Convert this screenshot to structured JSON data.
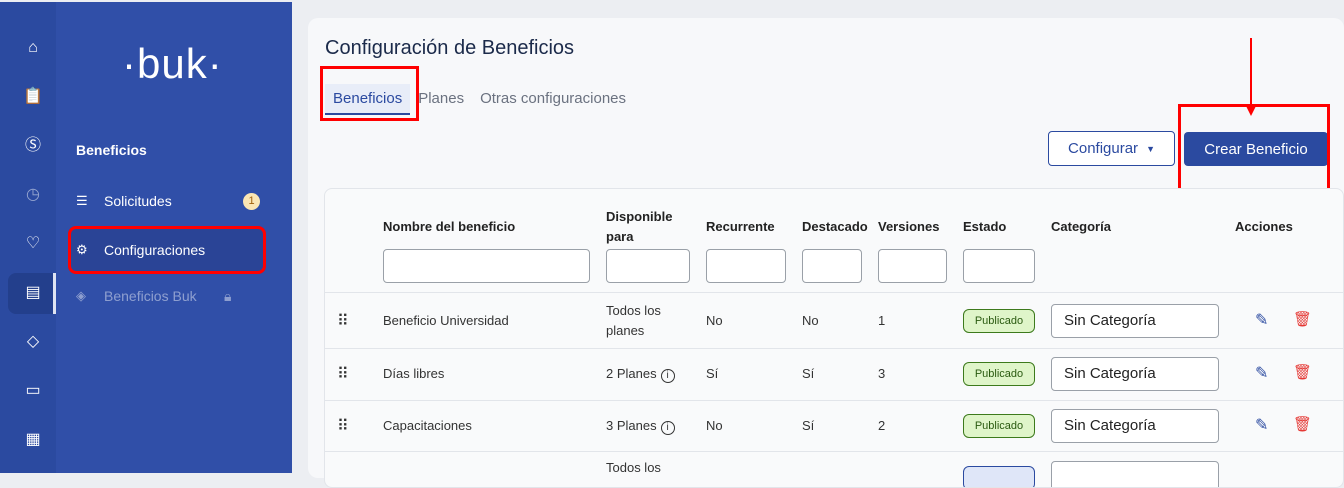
{
  "rail": {
    "icons": [
      "home-icon",
      "clipboard-clock-icon",
      "dollar-icon",
      "clock-icon",
      "hand-heart-icon",
      "gift-icon",
      "graduation-icon",
      "folder-icon",
      "store-icon"
    ]
  },
  "sidebar": {
    "logo": "·buk·",
    "section": "Beneficios",
    "items": [
      {
        "label": "Solicitudes",
        "badge": "1"
      },
      {
        "label": "Configuraciones"
      },
      {
        "label": "Beneficios Buk"
      }
    ]
  },
  "page": {
    "title": "Configuración de Beneficios",
    "tabs": [
      "Beneficios",
      "Planes",
      "Otras configuraciones"
    ],
    "configurar": "Configurar",
    "crear": "Crear Beneficio"
  },
  "table": {
    "headers": [
      "Nombre del beneficio",
      "Disponible para",
      "Recurrente",
      "Destacado",
      "Versiones",
      "Estado",
      "Categoría",
      "Acciones"
    ],
    "rows": [
      {
        "name": "Beneficio Universidad",
        "disp": "Todos los planes",
        "rec": "No",
        "dest": "No",
        "ver": "1",
        "estado": "Publicado",
        "cat": "Sin Categoría"
      },
      {
        "name": "Días libres",
        "disp": "2 Planes",
        "rec": "Sí",
        "dest": "Sí",
        "ver": "3",
        "estado": "Publicado",
        "cat": "Sin Categoría"
      },
      {
        "name": "Capacitaciones",
        "disp": "3 Planes",
        "rec": "No",
        "dest": "Sí",
        "ver": "2",
        "estado": "Publicado",
        "cat": "Sin Categoría"
      },
      {
        "disp": "Todos los"
      }
    ]
  },
  "colors": {
    "primary": "#2b4aa0",
    "sidebar": "#304fa8",
    "highlight": "#ff0000"
  }
}
